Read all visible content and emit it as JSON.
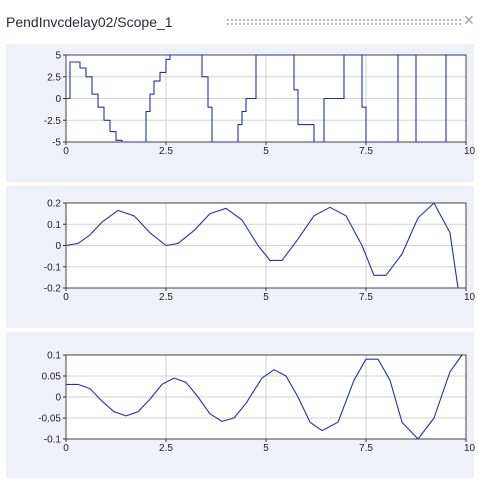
{
  "window": {
    "title": "PendInvcdelay02/Scope_1",
    "close_icon": "close-icon"
  },
  "chart_data": [
    {
      "type": "line",
      "x_ticks": [
        "0",
        "2.5",
        "5",
        "7.5",
        "10"
      ],
      "y_ticks": [
        "5",
        "2.5",
        "0",
        "-2.5",
        "-5"
      ],
      "xlim": [
        0,
        10
      ],
      "ylim": [
        -5,
        5
      ],
      "grid": true,
      "color": "#2233aa",
      "series": [
        {
          "step": true,
          "x": [
            0,
            0.1,
            0.2,
            0.35,
            0.5,
            0.65,
            0.8,
            0.95,
            1.1,
            1.25,
            1.4,
            1.55,
            2.0,
            2.1,
            2.2,
            2.35,
            2.5,
            2.6,
            2.75,
            3.4,
            3.55,
            3.65,
            4.2,
            4.3,
            4.4,
            4.5,
            4.75,
            5.6,
            5.7,
            5.8,
            6.2,
            6.3,
            6.45,
            6.95,
            7.05,
            7.4,
            7.5,
            8.2,
            8.3,
            8.7,
            8.75,
            9.45,
            9.5,
            10.0
          ],
          "y": [
            0,
            4.2,
            4.2,
            3.5,
            2.5,
            0.5,
            -1,
            -2.5,
            -3.8,
            -4.8,
            -5,
            -5,
            -1.5,
            0.5,
            2,
            3,
            4.5,
            5,
            5,
            2.5,
            -1,
            -5,
            -5,
            -3,
            -1.5,
            0,
            5,
            5,
            1,
            -3,
            -5,
            -5,
            0,
            5,
            5,
            -1,
            -5,
            -5,
            5,
            5,
            -5,
            -5,
            5,
            5
          ]
        }
      ]
    },
    {
      "type": "line",
      "x_ticks": [
        "0",
        "2.5",
        "5",
        "7.5",
        "10"
      ],
      "y_ticks": [
        "0.2",
        "0.1",
        "0",
        "-0.1",
        "-0.2"
      ],
      "xlim": [
        0,
        10
      ],
      "ylim": [
        -0.2,
        0.2
      ],
      "grid": true,
      "color": "#2233aa",
      "series": [
        {
          "x": [
            0,
            0.3,
            0.6,
            0.9,
            1.3,
            1.7,
            2.1,
            2.5,
            2.8,
            3.2,
            3.6,
            4.0,
            4.4,
            4.8,
            5.1,
            5.4,
            5.8,
            6.2,
            6.6,
            7.0,
            7.4,
            7.7,
            8.0,
            8.4,
            8.8,
            9.2,
            9.6,
            9.8
          ],
          "y": [
            0,
            0.01,
            0.05,
            0.11,
            0.165,
            0.14,
            0.06,
            0.0,
            0.01,
            0.07,
            0.15,
            0.175,
            0.12,
            0.0,
            -0.07,
            -0.07,
            0.03,
            0.14,
            0.18,
            0.14,
            0.0,
            -0.14,
            -0.14,
            -0.04,
            0.13,
            0.2,
            0.06,
            -0.2
          ]
        }
      ]
    },
    {
      "type": "line",
      "x_ticks": [
        "0",
        "2.5",
        "5",
        "7.5",
        "10"
      ],
      "y_ticks": [
        "0.1",
        "0.05",
        "0",
        "-0.05",
        "-0.1"
      ],
      "xlim": [
        0,
        10
      ],
      "ylim": [
        -0.1,
        0.1
      ],
      "grid": true,
      "color": "#2233aa",
      "series": [
        {
          "x": [
            0,
            0.3,
            0.6,
            0.9,
            1.2,
            1.5,
            1.8,
            2.1,
            2.4,
            2.7,
            3.0,
            3.3,
            3.6,
            3.9,
            4.2,
            4.5,
            4.9,
            5.2,
            5.5,
            5.8,
            6.1,
            6.4,
            6.8,
            7.2,
            7.5,
            7.8,
            8.1,
            8.4,
            8.8,
            9.2,
            9.6,
            9.9
          ],
          "y": [
            0.03,
            0.03,
            0.02,
            -0.01,
            -0.035,
            -0.045,
            -0.035,
            -0.005,
            0.03,
            0.045,
            0.035,
            0.0,
            -0.04,
            -0.058,
            -0.05,
            -0.015,
            0.045,
            0.065,
            0.05,
            0.0,
            -0.06,
            -0.08,
            -0.06,
            0.04,
            0.09,
            0.09,
            0.04,
            -0.06,
            -0.1,
            -0.05,
            0.06,
            0.1
          ]
        }
      ]
    }
  ]
}
